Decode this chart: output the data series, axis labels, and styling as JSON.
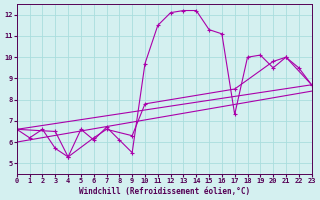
{
  "xlabel": "Windchill (Refroidissement éolien,°C)",
  "bg_color": "#d4f0f0",
  "grid_color": "#aadddd",
  "line_color": "#aa00aa",
  "xlim": [
    0,
    23
  ],
  "ylim": [
    4.5,
    12.5
  ],
  "yticks": [
    5,
    6,
    7,
    8,
    9,
    10,
    11,
    12
  ],
  "xticks": [
    0,
    1,
    2,
    3,
    4,
    5,
    6,
    7,
    8,
    9,
    10,
    11,
    12,
    13,
    14,
    15,
    16,
    17,
    18,
    19,
    20,
    21,
    22,
    23
  ],
  "series0_x": [
    0,
    1,
    2,
    3,
    4,
    5,
    6,
    7,
    8,
    9,
    10,
    11,
    12,
    13,
    14,
    15,
    16,
    17,
    18,
    19,
    20,
    21,
    22,
    23
  ],
  "series0_y": [
    6.6,
    6.2,
    6.6,
    5.7,
    5.3,
    6.6,
    6.1,
    6.7,
    6.1,
    5.5,
    9.7,
    11.5,
    12.1,
    12.2,
    12.2,
    11.3,
    11.1,
    7.3,
    10.0,
    10.1,
    9.5,
    10.0,
    9.5,
    8.7
  ],
  "series1_x": [
    0,
    23
  ],
  "series1_y": [
    6.6,
    8.7
  ],
  "series2_x": [
    0,
    3,
    4,
    6,
    7,
    9,
    10,
    17,
    20,
    21,
    23
  ],
  "series2_y": [
    6.6,
    6.5,
    5.3,
    6.2,
    6.6,
    6.3,
    7.8,
    8.5,
    9.8,
    10.0,
    8.7
  ],
  "series3_x": [
    0,
    23
  ],
  "series3_y": [
    6.0,
    8.4
  ]
}
